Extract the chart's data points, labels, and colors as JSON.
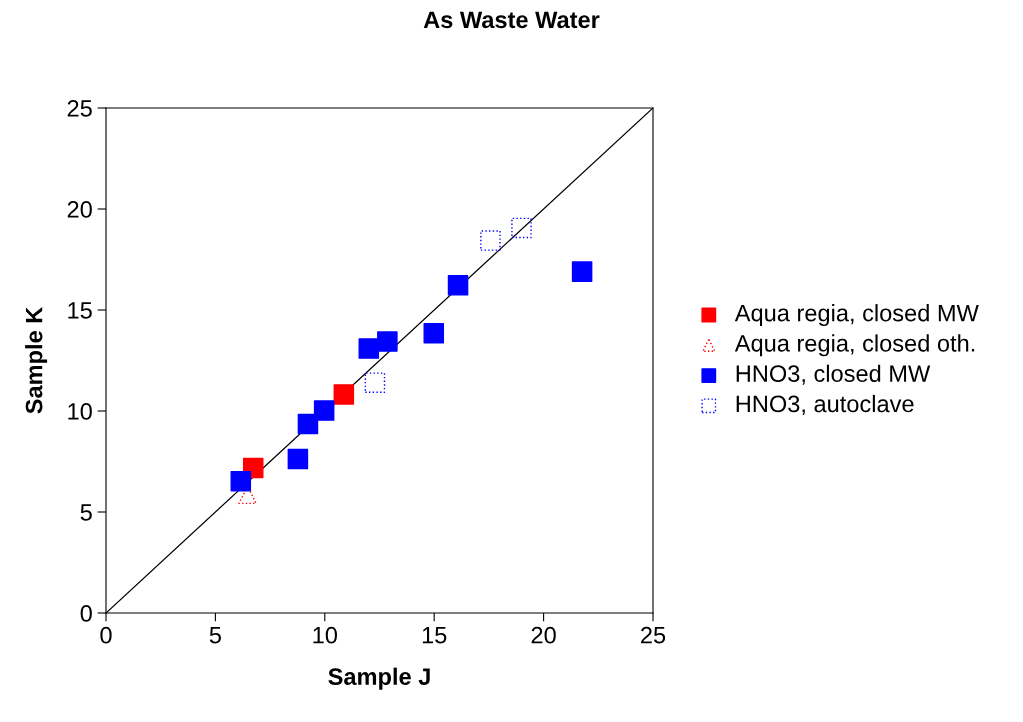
{
  "chart_data": {
    "type": "scatter",
    "title": "As Waste Water",
    "xlabel": "Sample J",
    "ylabel": "Sample K",
    "xlim": [
      0,
      25
    ],
    "ylim": [
      0,
      25
    ],
    "xticks": [
      0,
      5,
      10,
      15,
      20,
      25
    ],
    "yticks": [
      0,
      5,
      10,
      15,
      20,
      25
    ],
    "grid": false,
    "legend": "right",
    "series": [
      {
        "name": "Aqua regia, closed MW",
        "color": "#ff0000",
        "marker": "square",
        "x": [
          6.73,
          10.87
        ],
        "values": [
          7.18,
          10.82
        ]
      },
      {
        "name": "Aqua regia, closed oth.",
        "color": "#ff0000",
        "marker": "triangle",
        "line_style": "dotted",
        "x": [
          6.47
        ],
        "values": [
          5.85
        ]
      },
      {
        "name": "HNO3, closed MW",
        "color": "#0000ff",
        "marker": "square",
        "x": [
          6.16,
          8.77,
          9.23,
          9.97,
          12.01,
          12.86,
          14.98,
          16.09,
          21.76
        ],
        "values": [
          6.52,
          7.62,
          9.36,
          10.02,
          13.09,
          13.44,
          13.85,
          16.22,
          16.9
        ]
      },
      {
        "name": "HNO3, autoclave",
        "color": "#0000ff",
        "marker": "square",
        "line_style": "dotted",
        "x": [
          12.29,
          17.57,
          18.99
        ],
        "values": [
          11.4,
          18.44,
          19.06
        ]
      },
      {
        "type": "line",
        "color": "#000000",
        "marker": "none",
        "x": [
          0,
          25
        ],
        "values": [
          0,
          25
        ]
      }
    ]
  }
}
